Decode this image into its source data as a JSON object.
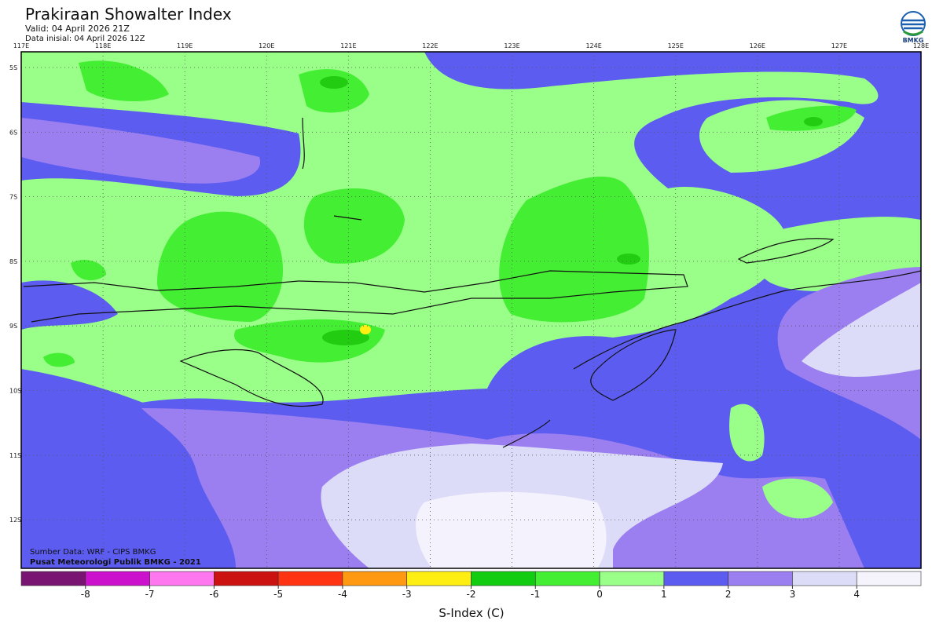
{
  "header": {
    "title": "Prakiraan Showalter Index",
    "valid": "Valid: 04 April 2026 21Z",
    "init": "Data inisial: 04 April 2026 12Z"
  },
  "logo": {
    "label": "BMKG"
  },
  "map": {
    "lon_labels": [
      "117E",
      "118E",
      "119E",
      "120E",
      "121E",
      "122E",
      "123E",
      "124E",
      "125E",
      "126E",
      "127E",
      "128E"
    ],
    "lat_labels": [
      "5S",
      "6S",
      "7S",
      "8S",
      "9S",
      "10S",
      "11S",
      "12S"
    ]
  },
  "footer": {
    "source": "Sumber Data: WRF - CIPS BMKG",
    "credit": "Pusat Meteorologi Publik BMKG - 2021"
  },
  "colorbar": {
    "colors": [
      "#7a1472",
      "#cc11cc",
      "#ff77ee",
      "#cc1111",
      "#ff3311",
      "#ff9911",
      "#ffee11",
      "#11cc11",
      "#44ee33",
      "#99ff88",
      "#5c5cf0",
      "#9b7ff0",
      "#dcdcf8",
      "#f5f3fc"
    ],
    "lim": [
      -9,
      5
    ],
    "ticks": [
      -8,
      -7,
      -6,
      -5,
      -4,
      -3,
      -2,
      -1,
      0,
      1,
      2,
      3,
      4
    ],
    "title": "S-Index (C)"
  }
}
